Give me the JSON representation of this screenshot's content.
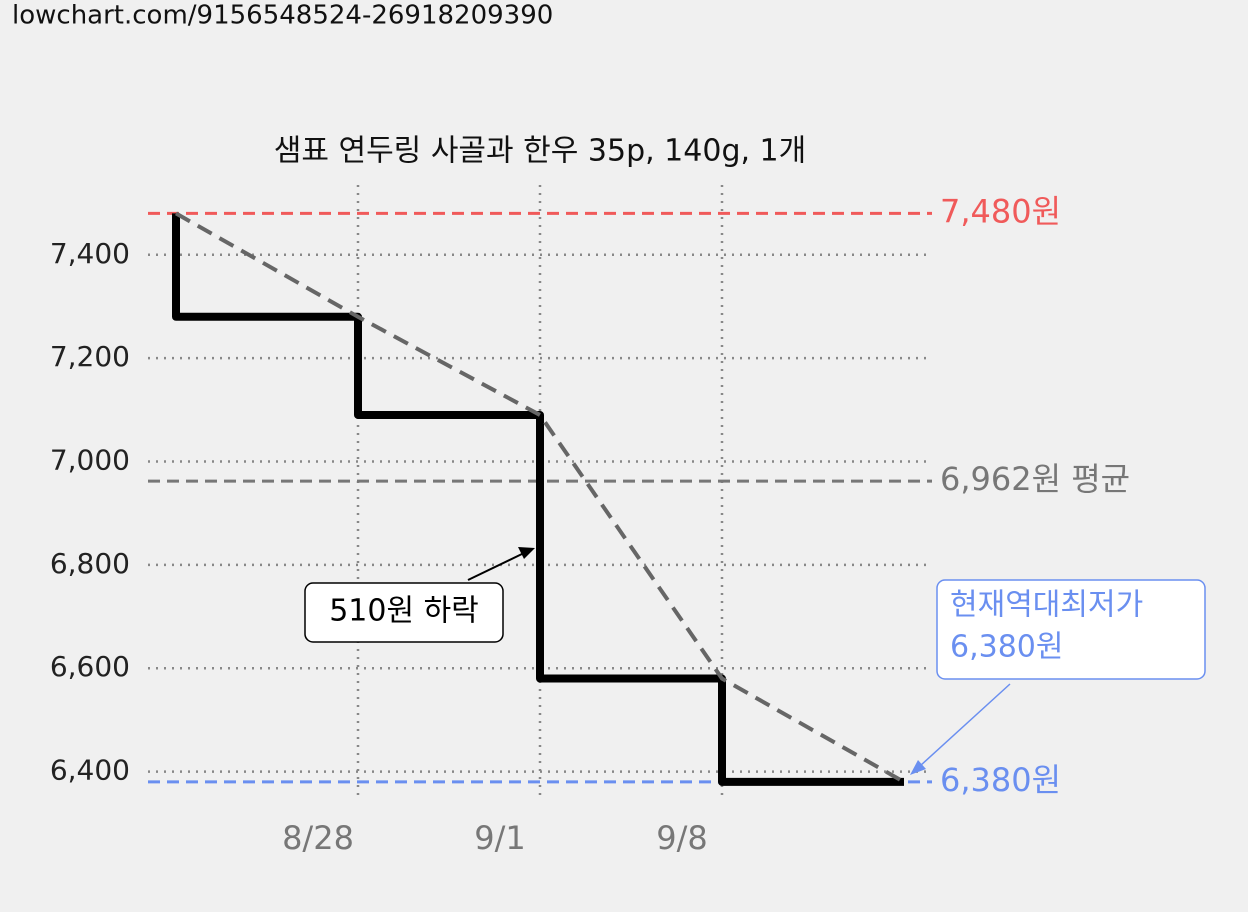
{
  "source_url": "lowchart.com/9156548524-26918209390",
  "chart_data": {
    "type": "line",
    "title": "샘표 연두링 사골과 한우 35p, 140g, 1개",
    "categories": [
      null,
      "8/28",
      "9/1",
      "9/8",
      null
    ],
    "series": [
      {
        "name": null,
        "drawstyle": "steps-pre",
        "color": "#000000",
        "values": [
          7480,
          7280,
          7090,
          6580,
          6380
        ]
      },
      {
        "name": null,
        "drawstyle": "dashed",
        "color": "#666666",
        "values": [
          7480,
          7280,
          7090,
          6580,
          6380
        ]
      }
    ],
    "ylim": [
      6345,
      7535
    ],
    "yticks": [
      {
        "value": 6400,
        "label": "6,400"
      },
      {
        "value": 6600,
        "label": "6,600"
      },
      {
        "value": 6800,
        "label": "6,800"
      },
      {
        "value": 7000,
        "label": "7,000"
      },
      {
        "value": 7200,
        "label": "7,200"
      },
      {
        "value": 7400,
        "label": "7,400"
      }
    ],
    "grid": true,
    "reference_lines": [
      {
        "value": 7480,
        "label": "7,480원",
        "color": "#f05a5a"
      },
      {
        "value": 6962,
        "label": "6,962원 평균",
        "color": "#777777"
      },
      {
        "value": 6380,
        "label": "6,380원",
        "color": "#6a8ff0"
      }
    ],
    "annotations": [
      {
        "text": "510원 하락"
      },
      {
        "lines": [
          "현재역대최저가",
          "6,380원"
        ],
        "color": "#6a8ff0"
      }
    ]
  }
}
